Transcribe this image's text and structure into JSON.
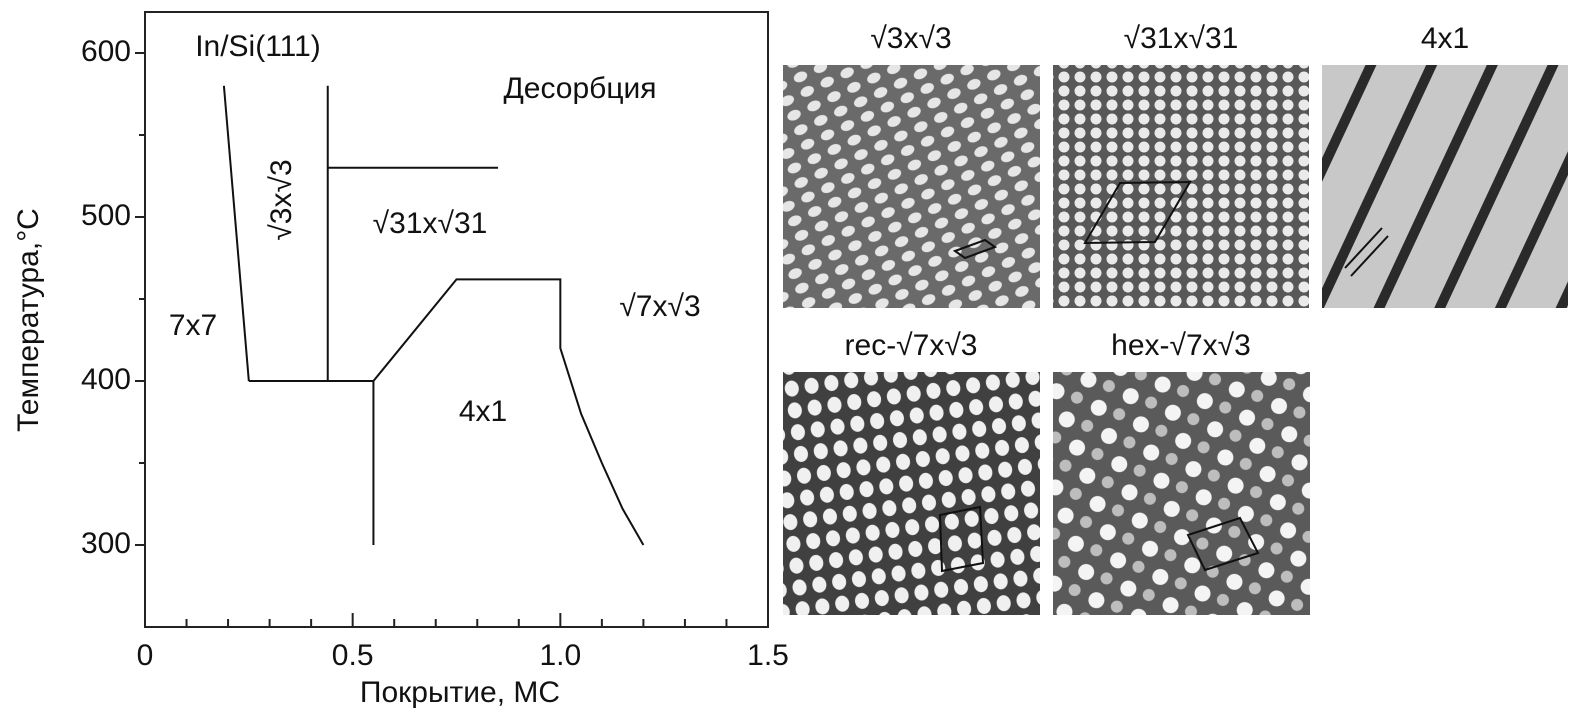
{
  "chart_data": {
    "type": "line",
    "xlabel": "Покрытие, МС",
    "ylabel": "Температура,°C",
    "xlim": [
      0,
      1.5
    ],
    "ylim": [
      250,
      625
    ],
    "xticks": [
      0,
      0.5,
      {
        "value": 1,
        "label": "1.0"
      },
      1.5
    ],
    "xminorticks": [
      0.1,
      0.2,
      0.3,
      0.4,
      0.6,
      0.7,
      0.8,
      0.9,
      1.1,
      1.2,
      1.3,
      1.4
    ],
    "yticks": [
      300,
      400,
      500,
      600
    ],
    "yminorticks": [
      350,
      450,
      550
    ],
    "series": [
      {
        "color": "#111111",
        "x": [
          0.19,
          0.25
        ],
        "values": [
          580,
          400
        ]
      },
      {
        "color": "#111111",
        "x": [
          0.25,
          0.55
        ],
        "values": [
          400,
          400
        ]
      },
      {
        "color": "#111111",
        "x": [
          0.44,
          0.44
        ],
        "values": [
          400,
          580
        ]
      },
      {
        "color": "#111111",
        "x": [
          0.44,
          0.85
        ],
        "values": [
          530,
          530
        ]
      },
      {
        "color": "#111111",
        "x": [
          0.55,
          0.55
        ],
        "values": [
          400,
          300
        ]
      },
      {
        "color": "#111111",
        "x": [
          0.55,
          0.75,
          1.0,
          1.0,
          1.05,
          1.1,
          1.15,
          1.2
        ],
        "values": [
          400,
          462,
          462,
          420,
          380,
          350,
          322,
          300
        ]
      }
    ],
    "annotations": [
      "In/Si(111)",
      "Десорбция",
      "√3x√3",
      "√31x√31",
      "7x7",
      "√7x√3",
      "4x1"
    ]
  },
  "stm_images": [
    {
      "title": "√3x√3"
    },
    {
      "title": "√31x√31"
    },
    {
      "title": "4x1"
    },
    {
      "title": "rec-√7x√3"
    },
    {
      "title": "hex-√7x√3"
    }
  ]
}
